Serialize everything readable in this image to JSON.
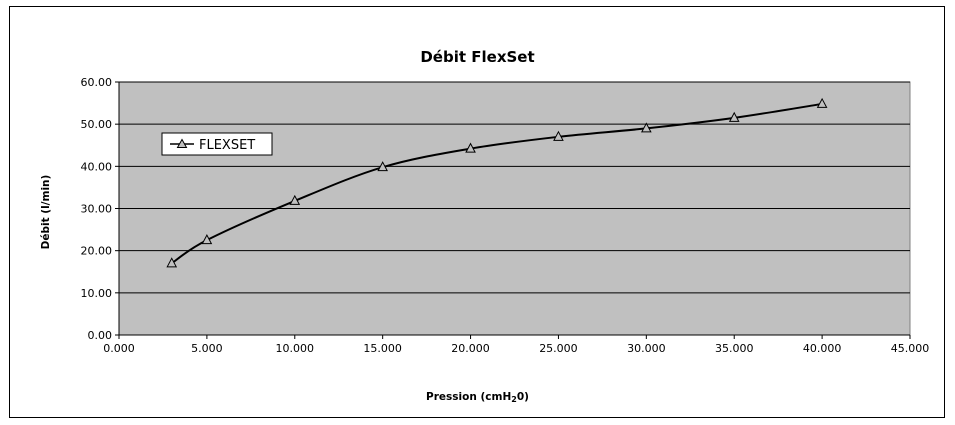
{
  "chart_data": {
    "type": "line",
    "title": "Débit FlexSet",
    "xlabel": "Pression (cmH20)",
    "ylabel": "Débit (l/min)",
    "xlim": [
      0,
      45
    ],
    "ylim": [
      0,
      60
    ],
    "x_ticks": [
      "0.000",
      "5.000",
      "10.000",
      "15.000",
      "20.000",
      "25.000",
      "30.000",
      "35.000",
      "40.000",
      "45.000"
    ],
    "y_ticks": [
      "0.00",
      "10.00",
      "20.00",
      "30.00",
      "40.00",
      "50.00",
      "60.00"
    ],
    "grid": "horizontal",
    "plot_background": "#c0c0c0",
    "legend": {
      "position": "left",
      "entries": [
        "FLEXSET"
      ]
    },
    "series": [
      {
        "name": "FLEXSET",
        "marker": "triangle",
        "color": "#000000",
        "smoothed": true,
        "x": [
          3,
          5,
          10,
          15,
          20,
          25,
          30,
          35,
          40
        ],
        "y": [
          17.0,
          22.5,
          31.8,
          39.8,
          44.2,
          47.0,
          49.0,
          51.5,
          54.8
        ]
      }
    ]
  }
}
